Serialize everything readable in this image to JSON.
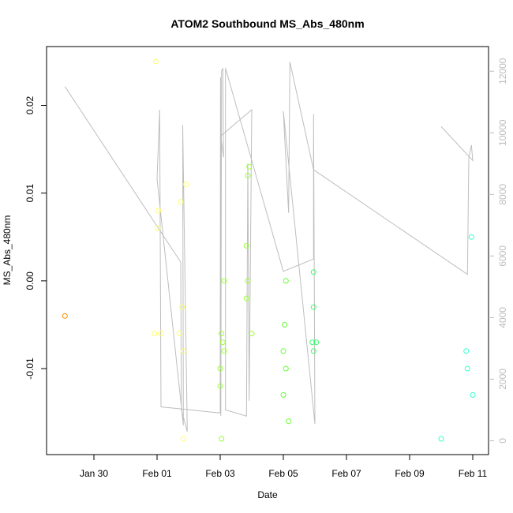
{
  "chart_data": {
    "type": "scatter",
    "title": "ATOM2 Southbound MS_Abs_480nm",
    "xlabel": "Date",
    "ylabel": "MS_Abs_480nm",
    "x_ticks": [
      "Jan 30",
      "Feb 01",
      "Feb 03",
      "Feb 05",
      "Feb 07",
      "Feb 09",
      "Feb 11"
    ],
    "y_ticks": [
      "-0.01",
      "0.00",
      "0.01",
      "0.02"
    ],
    "y2_ticks": [
      "0",
      "2000",
      "4000",
      "6000",
      "8000",
      "10000",
      "12000"
    ],
    "xlim": [
      "2016-01-28T12:00",
      "2016-02-11T12:00"
    ],
    "ylim": [
      -0.0198,
      0.0267
    ],
    "y2lim": [
      -450,
      12800
    ],
    "grid": false,
    "series": [
      {
        "values": [
          [
            "2016-01-29T02:00",
            -0.004,
            "#ff8c00"
          ],
          [
            "2016-01-31T23:00",
            0.025,
            "#ffff66"
          ],
          [
            "2016-02-01T01:00",
            0.008,
            "#ffff66"
          ],
          [
            "2016-02-01T00:30",
            0.006,
            "#ffff66"
          ],
          [
            "2016-01-31T22:00",
            -0.006,
            "#ffff66"
          ],
          [
            "2016-02-01T03:00",
            -0.006,
            "#ffff66"
          ],
          [
            "2016-02-01T18:00",
            0.009,
            "#ffff66"
          ],
          [
            "2016-02-01T22:00",
            0.011,
            "#ffff66"
          ],
          [
            "2016-02-01T19:00",
            -0.003,
            "#ffff66"
          ],
          [
            "2016-02-01T17:00",
            -0.006,
            "#ffff66"
          ],
          [
            "2016-02-01T20:00",
            -0.008,
            "#ffff66"
          ],
          [
            "2016-02-01T20:00",
            -0.018,
            "#ffff66"
          ],
          [
            "2016-02-03T00:00",
            -0.01,
            "#99ff33"
          ],
          [
            "2016-02-03T00:00",
            -0.012,
            "#99ff33"
          ],
          [
            "2016-02-03T01:00",
            -0.006,
            "#99ff33"
          ],
          [
            "2016-02-03T02:00",
            -0.007,
            "#99ff33"
          ],
          [
            "2016-02-03T03:00",
            -0.008,
            "#99ff33"
          ],
          [
            "2016-02-03T03:00",
            0.0,
            "#99ff33"
          ],
          [
            "2016-02-03T01:00",
            -0.018,
            "#99ff33"
          ],
          [
            "2016-02-03T20:00",
            0.004,
            "#99ff33"
          ],
          [
            "2016-02-03T21:00",
            0.012,
            "#99ff33"
          ],
          [
            "2016-02-03T22:00",
            0.013,
            "#99ff33"
          ],
          [
            "2016-02-03T21:00",
            0.0,
            "#99ff33"
          ],
          [
            "2016-02-03T20:00",
            -0.002,
            "#99ff33"
          ],
          [
            "2016-02-04T00:00",
            -0.006,
            "#99ff33"
          ],
          [
            "2016-02-05T02:00",
            0.0,
            "#66ff33"
          ],
          [
            "2016-02-05T01:00",
            -0.005,
            "#66ff33"
          ],
          [
            "2016-02-05T00:00",
            -0.008,
            "#66ff33"
          ],
          [
            "2016-02-05T02:00",
            -0.01,
            "#66ff33"
          ],
          [
            "2016-02-05T00:00",
            -0.013,
            "#66ff33"
          ],
          [
            "2016-02-05T04:00",
            -0.016,
            "#66ff33"
          ],
          [
            "2016-02-05T23:00",
            0.001,
            "#33ff66"
          ],
          [
            "2016-02-05T23:00",
            -0.003,
            "#33ff66"
          ],
          [
            "2016-02-05T22:00",
            -0.007,
            "#33ff66"
          ],
          [
            "2016-02-06T01:00",
            -0.007,
            "#33ff66"
          ],
          [
            "2016-02-05T23:00",
            -0.008,
            "#33ff66"
          ],
          [
            "2016-02-10T00:00",
            -0.018,
            "#33ffcc"
          ],
          [
            "2016-02-10T19:00",
            -0.008,
            "#33ffcc"
          ],
          [
            "2016-02-10T20:00",
            -0.01,
            "#33ffcc"
          ],
          [
            "2016-02-10T23:00",
            0.005,
            "#33ffcc"
          ],
          [
            "2016-02-11T00:00",
            -0.013,
            "#33ffcc"
          ]
        ]
      }
    ],
    "secondary_line": {
      "color": "#bebebe",
      "axis": "right",
      "values": [
        [
          "2016-01-29T02:00",
          11500
        ],
        [
          "2016-02-01T18:00",
          5800
        ],
        [
          "2016-02-01T18:30",
          1000
        ],
        [
          "2016-02-01T23:00",
          300
        ],
        [
          "2016-02-01T19:30",
          10250
        ],
        [
          "2016-02-01T20:00",
          500
        ],
        [
          "2016-02-01T00:00",
          8500
        ],
        [
          "2016-02-01T02:00",
          10750
        ],
        [
          "2016-02-01T03:00",
          1100
        ],
        [
          "2016-02-03T00:00",
          900
        ],
        [
          "2016-02-03T00:15",
          11800
        ],
        [
          "2016-02-03T00:30",
          800
        ],
        [
          "2016-02-03T01:00",
          12000
        ],
        [
          "2016-02-03T02:00",
          12100
        ],
        [
          "2016-02-03T02:30",
          9200
        ],
        [
          "2016-02-03T00:30",
          9900
        ],
        [
          "2016-02-04T00:00",
          10750
        ],
        [
          "2016-02-03T22:00",
          1300
        ],
        [
          "2016-02-03T21:00",
          9000
        ],
        [
          "2016-02-03T20:00",
          800
        ],
        [
          "2016-02-03T04:00",
          1000
        ],
        [
          "2016-02-03T04:00",
          12100
        ],
        [
          "2016-02-05T00:00",
          5500
        ],
        [
          "2016-02-05T23:00",
          5900
        ],
        [
          "2016-02-05T23:00",
          10600
        ],
        [
          "2016-02-06T00:00",
          550
        ],
        [
          "2016-02-05T00:00",
          10700
        ],
        [
          "2016-02-05T04:00",
          7400
        ],
        [
          "2016-02-05T05:00",
          12300
        ],
        [
          "2016-02-05T23:00",
          8800
        ],
        [
          "2016-02-10T20:00",
          5400
        ],
        [
          "2016-02-10T21:00",
          9200
        ],
        [
          "2016-02-10T23:00",
          9600
        ],
        [
          "2016-02-11T00:00",
          9100
        ],
        [
          "2016-02-10T00:00",
          10200
        ]
      ]
    },
    "plot_style": "open-circles"
  }
}
